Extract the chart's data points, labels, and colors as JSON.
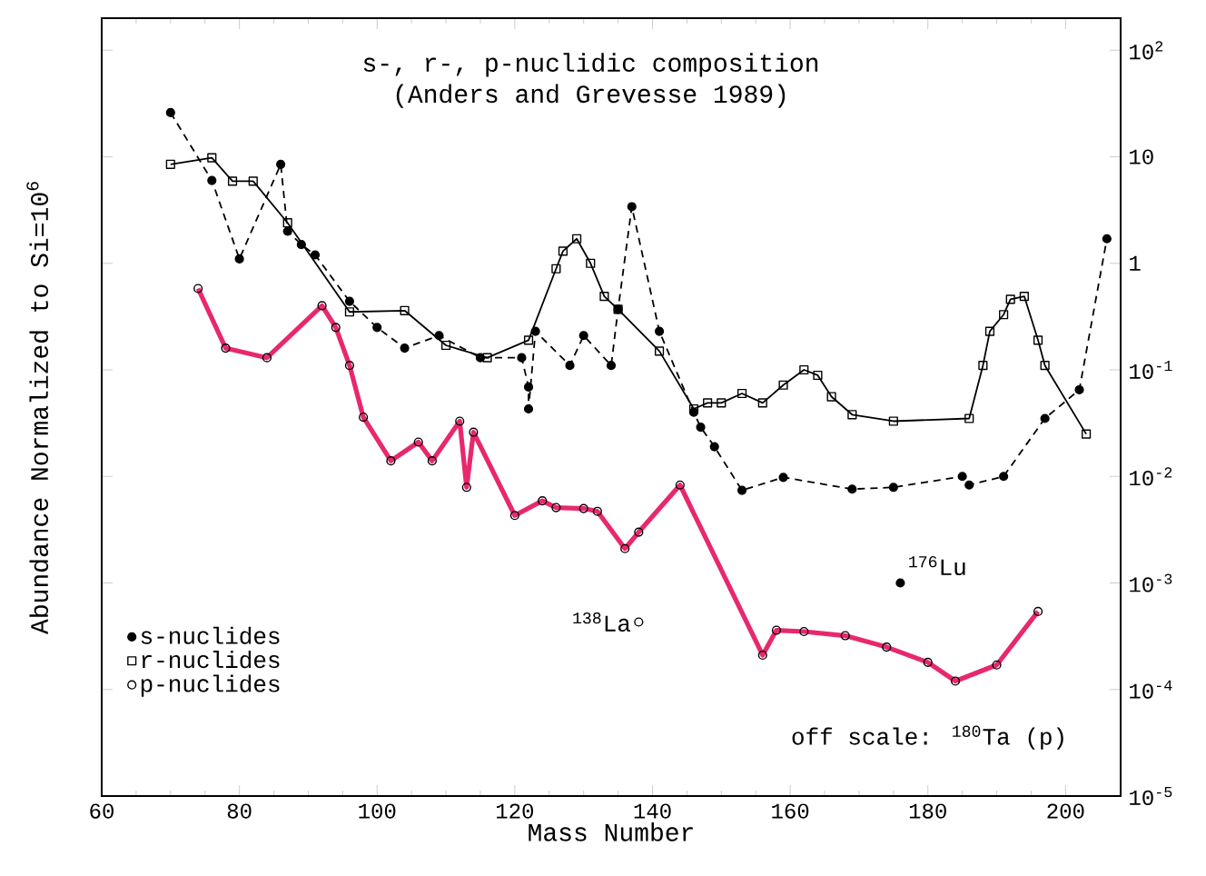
{
  "chart_data": {
    "type": "line",
    "title": "s-, r-, p-nuclidic composition",
    "subtitle": "(Anders and Grevesse 1989)",
    "xlabel": "Mass Number",
    "ylabel": "Abundance Normalized to Si=10$^{6}$",
    "log": "y",
    "grid": false,
    "legend": "bottom left",
    "xlim": [
      60,
      208
    ],
    "xticks": [
      60,
      80,
      100,
      120,
      140,
      160,
      180,
      200
    ],
    "ylim": [
      1e-05,
      200
    ],
    "yticks": [
      {
        "value": 100,
        "label": "10$^{2}$"
      },
      {
        "value": 10,
        "label": "10"
      },
      {
        "value": 1,
        "label": "1"
      },
      {
        "value": 0.1,
        "label": "10$^{-1}$"
      },
      {
        "value": 0.01,
        "label": "10$^{-2}$"
      },
      {
        "value": 0.001,
        "label": "10$^{-3}$"
      },
      {
        "value": 0.0001,
        "label": "10$^{-4}$"
      },
      {
        "value": 1e-05,
        "label": "10$^{-5}$"
      }
    ],
    "series": [
      {
        "name": "s-nuclides",
        "color": "#000000",
        "marker": "circle",
        "line_style": "dashed",
        "x": [
          70,
          76,
          80,
          86,
          87,
          89,
          91,
          96,
          100,
          104,
          109,
          115,
          121,
          122,
          122,
          123,
          128,
          130,
          134,
          135,
          137,
          141,
          146,
          147,
          149,
          153,
          159,
          169,
          175,
          185,
          186,
          191,
          197,
          202,
          206
        ],
        "values": [
          26,
          6.0,
          1.1,
          8.5,
          2.0,
          1.5,
          1.2,
          0.44,
          0.25,
          0.16,
          0.21,
          0.13,
          0.13,
          0.069,
          0.043,
          0.23,
          0.11,
          0.21,
          0.11,
          0.37,
          3.4,
          0.23,
          0.04,
          0.029,
          0.019,
          0.0074,
          0.0098,
          0.0076,
          0.0079,
          0.01,
          0.0083,
          0.01,
          0.035,
          0.065,
          1.7
        ]
      },
      {
        "name": "r-nuclides",
        "color": "#000000",
        "marker": "square",
        "line_style": "solid",
        "x": [
          70,
          76,
          79,
          82,
          87,
          96,
          104,
          110,
          116,
          122,
          126,
          127,
          129,
          131,
          133,
          135,
          141,
          146,
          148,
          150,
          153,
          156,
          159,
          162,
          164,
          166,
          169,
          175,
          186,
          188,
          189,
          191,
          192,
          194,
          196,
          197,
          203
        ],
        "values": [
          8.5,
          9.8,
          5.9,
          5.9,
          2.4,
          0.35,
          0.36,
          0.17,
          0.13,
          0.19,
          0.89,
          1.3,
          1.7,
          1.0,
          0.49,
          0.37,
          0.15,
          0.043,
          0.049,
          0.049,
          0.06,
          0.049,
          0.072,
          0.1,
          0.089,
          0.056,
          0.038,
          0.033,
          0.035,
          0.11,
          0.23,
          0.33,
          0.46,
          0.49,
          0.19,
          0.11,
          0.025
        ]
      },
      {
        "name": "p-nuclides",
        "color": "#e8286e",
        "marker": "circle",
        "line_style": "solid",
        "x": [
          74,
          78,
          84,
          92,
          94,
          96,
          98,
          102,
          106,
          108,
          112,
          113,
          114,
          120,
          124,
          126,
          130,
          132,
          136,
          138,
          144,
          156,
          158,
          162,
          168,
          174,
          180,
          184,
          190,
          196
        ],
        "values": [
          0.58,
          0.16,
          0.13,
          0.4,
          0.25,
          0.11,
          0.036,
          0.014,
          0.021,
          0.014,
          0.033,
          0.0079,
          0.026,
          0.0043,
          0.0059,
          0.0051,
          0.005,
          0.0047,
          0.0021,
          0.003,
          0.0083,
          0.00021,
          0.00036,
          0.00035,
          0.00032,
          0.00025,
          0.00018,
          0.00012,
          0.00017,
          0.00054
        ]
      },
      {
        "type": "scatter",
        "color": "#000000",
        "marker": "circle",
        "x": [
          176
        ],
        "values": [
          0.001
        ]
      },
      {
        "type": "scatter",
        "color": "#000000",
        "marker": "circle",
        "x": [
          138
        ],
        "values": [
          0.00043
        ]
      }
    ],
    "annotations": [
      {
        "text": "$^{176}$Lu",
        "x": 176,
        "y": 0.001
      },
      {
        "text": "$^{138}$La",
        "x": 138,
        "y": 0.00043
      },
      "off scale: $^{180}$Ta (p)"
    ]
  }
}
